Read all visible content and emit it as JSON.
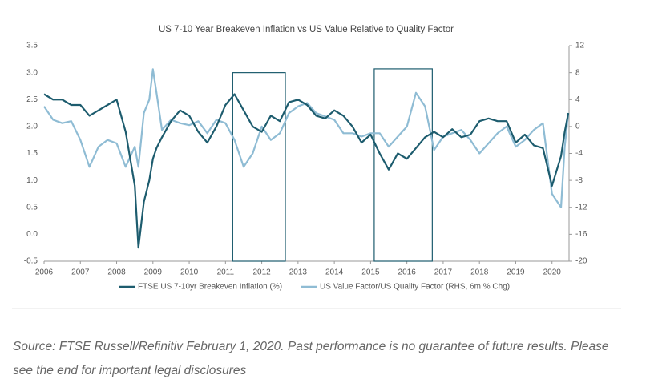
{
  "chart_data": {
    "type": "line",
    "title": "US 7-10 Year Breakeven Inflation vs US Value Relative to Quality Factor",
    "x": [
      2006,
      2006.25,
      2006.5,
      2006.75,
      2007,
      2007.25,
      2007.5,
      2007.75,
      2008,
      2008.25,
      2008.5,
      2008.6,
      2008.75,
      2008.9,
      2009,
      2009.1,
      2009.25,
      2009.5,
      2009.75,
      2010,
      2010.25,
      2010.5,
      2010.75,
      2011,
      2011.25,
      2011.5,
      2011.75,
      2012,
      2012.25,
      2012.5,
      2012.75,
      2013,
      2013.25,
      2013.5,
      2013.75,
      2014,
      2014.25,
      2014.5,
      2014.75,
      2015,
      2015.25,
      2015.5,
      2015.75,
      2016,
      2016.25,
      2016.5,
      2016.75,
      2017,
      2017.25,
      2017.5,
      2017.75,
      2018,
      2018.25,
      2018.5,
      2018.75,
      2019,
      2019.25,
      2019.5,
      2019.75,
      2020,
      2020.25,
      2020.35,
      2020.45
    ],
    "series": [
      {
        "name": "FTSE US 7-10yr Breakeven Inflation (%)",
        "color": "#1d5c6e",
        "axis": "y",
        "values": [
          2.6,
          2.5,
          2.5,
          2.4,
          2.4,
          2.2,
          2.3,
          2.4,
          2.5,
          1.9,
          0.9,
          -0.25,
          0.6,
          1.0,
          1.4,
          1.6,
          1.8,
          2.1,
          2.3,
          2.2,
          1.9,
          1.7,
          2.0,
          2.4,
          2.6,
          2.3,
          2.0,
          1.9,
          2.2,
          2.1,
          2.45,
          2.5,
          2.4,
          2.2,
          2.15,
          2.3,
          2.2,
          2.0,
          1.7,
          1.85,
          1.5,
          1.2,
          1.5,
          1.4,
          1.6,
          1.8,
          1.9,
          1.8,
          1.95,
          1.8,
          1.85,
          2.1,
          2.15,
          2.1,
          2.1,
          1.7,
          1.85,
          1.65,
          1.6,
          0.9,
          1.45,
          1.9,
          2.25
        ]
      },
      {
        "name": "US Value Factor/US Quality Factor (RHS, 6m % Chg)",
        "color": "#8fbcd4",
        "axis": "y2",
        "values": [
          3,
          1,
          0.5,
          0.8,
          -2,
          -6,
          -3,
          -2,
          -2.5,
          -6,
          -3,
          -6,
          2,
          4,
          8.5,
          5,
          -0.5,
          1,
          0.5,
          0.2,
          0.8,
          -1,
          1,
          0.5,
          -2,
          -6,
          -4,
          0,
          -2,
          -1,
          2,
          3,
          3.5,
          2,
          1.5,
          1,
          -1,
          -1,
          -1.5,
          -1,
          -1,
          -3,
          -1.5,
          0,
          5,
          3,
          -3.5,
          -1.5,
          -1,
          -0.5,
          -2,
          -4,
          -2.5,
          -1,
          0,
          -3,
          -2,
          -0.5,
          0.5,
          -10,
          -12,
          -3,
          2
        ]
      }
    ],
    "xlim": [
      2006,
      2020.47
    ],
    "xticks": [
      2006,
      2007,
      2008,
      2009,
      2010,
      2011,
      2012,
      2013,
      2014,
      2015,
      2016,
      2017,
      2018,
      2019,
      2020
    ],
    "ylim": [
      -0.5,
      3.5
    ],
    "yticks": [
      -0.5,
      {
        "value": 0,
        "label": "0.0"
      },
      0.5,
      {
        "value": 1,
        "label": "1.0"
      },
      1.5,
      {
        "value": 2,
        "label": "2.0"
      },
      2.5,
      {
        "value": 3,
        "label": "3.0"
      },
      3.5
    ],
    "y2lim": [
      -20,
      12
    ],
    "y2ticks": [
      -20,
      -16,
      -12,
      -8,
      -4,
      0,
      4,
      8,
      12
    ],
    "highlights": [
      {
        "x": [
          2011.2,
          2012.65
        ],
        "y": [
          3.0,
          -0.5
        ]
      },
      {
        "x": [
          2015.1,
          2016.7
        ],
        "y": [
          3.07,
          -0.5
        ]
      }
    ],
    "grid": false
  },
  "caption": "Source: FTSE Russell/Refinitiv February 1, 2020. Past performance is no guarantee of future results. Please see the end for important legal disclosures"
}
